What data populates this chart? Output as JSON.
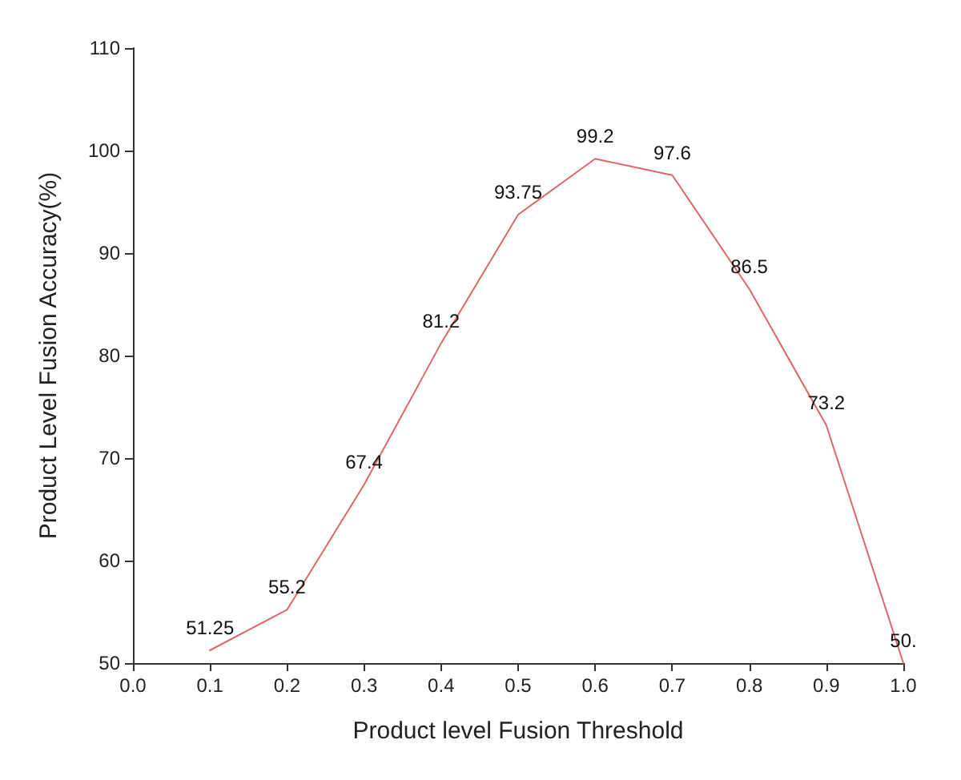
{
  "chart_data": {
    "type": "line",
    "xlabel": "Product level Fusion Threshold",
    "ylabel": "Product Level Fusion Accuracy(%)",
    "x": [
      0.1,
      0.2,
      0.3,
      0.4,
      0.5,
      0.6,
      0.7,
      0.8,
      0.9,
      1.0
    ],
    "series": [
      {
        "color": "#e06666",
        "values": [
          51.25,
          55.2,
          67.4,
          81.2,
          93.75,
          99.2,
          97.6,
          86.5,
          73.2,
          50
        ],
        "value_labels": [
          "51.25",
          "55.2",
          "67.4",
          "81.2",
          "93.75",
          "99.2",
          "97.6",
          "86.5",
          "73.2",
          "50."
        ]
      }
    ],
    "xlim": [
      0,
      1
    ],
    "xticks": [
      {
        "value": 0,
        "label": "0.0"
      },
      0.1,
      0.2,
      0.3,
      0.4,
      0.5,
      0.6,
      0.7,
      0.8,
      0.9,
      {
        "value": 1,
        "label": "1.0"
      }
    ],
    "ylim": [
      50,
      110
    ],
    "yticks": [
      50,
      60,
      70,
      80,
      90,
      100,
      110
    ],
    "grid": false,
    "marker": "none",
    "line_style": "solid"
  }
}
